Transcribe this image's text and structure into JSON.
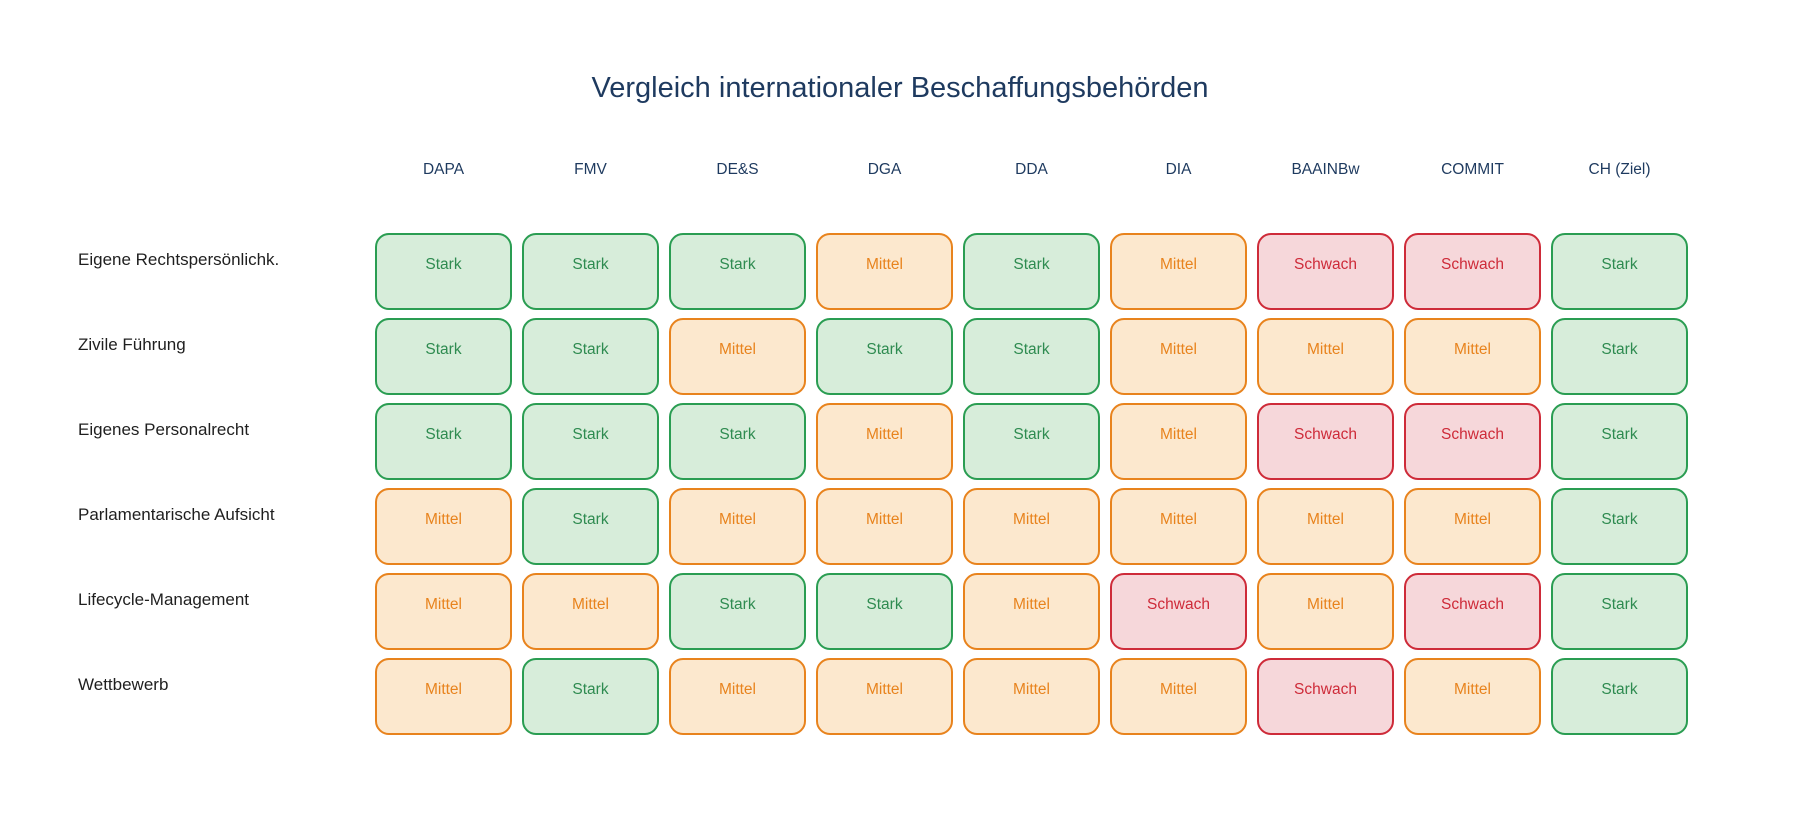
{
  "title": "Vergleich internationaler Beschaffungsbehörden",
  "colors": {
    "navy": "#1e3a5f",
    "label": "#1f1f1f",
    "stark_fill": "#d7edda",
    "stark_border": "#2a9d52",
    "stark_text": "#2e8b50",
    "mittel_fill": "#fce8ce",
    "mittel_border": "#e8831d",
    "mittel_text": "#e8831d",
    "schwach_fill": "#f6d7da",
    "schwach_border": "#ce2b39",
    "schwach_text": "#ce2b39"
  },
  "chart_data": {
    "type": "heatmap",
    "title": "Vergleich internationaler Beschaffungsbehörden",
    "columns": [
      "DAPA",
      "FMV",
      "DE&S",
      "DGA",
      "DDA",
      "DIA",
      "BAAINBw",
      "COMMIT",
      "CH (Ziel)"
    ],
    "rows": [
      "Eigene Rechtspersönlichk.",
      "Zivile Führung",
      "Eigenes Personalrecht",
      "Parlamentarische Aufsicht",
      "Lifecycle-Management",
      "Wettbewerb"
    ],
    "values": [
      [
        "Stark",
        "Stark",
        "Stark",
        "Mittel",
        "Stark",
        "Mittel",
        "Schwach",
        "Schwach",
        "Stark"
      ],
      [
        "Stark",
        "Stark",
        "Mittel",
        "Stark",
        "Stark",
        "Mittel",
        "Mittel",
        "Mittel",
        "Stark"
      ],
      [
        "Stark",
        "Stark",
        "Stark",
        "Mittel",
        "Stark",
        "Mittel",
        "Schwach",
        "Schwach",
        "Stark"
      ],
      [
        "Mittel",
        "Stark",
        "Mittel",
        "Mittel",
        "Mittel",
        "Mittel",
        "Mittel",
        "Mittel",
        "Stark"
      ],
      [
        "Mittel",
        "Mittel",
        "Stark",
        "Stark",
        "Mittel",
        "Schwach",
        "Mittel",
        "Schwach",
        "Stark"
      ],
      [
        "Mittel",
        "Stark",
        "Mittel",
        "Mittel",
        "Mittel",
        "Mittel",
        "Schwach",
        "Mittel",
        "Stark"
      ]
    ],
    "value_scale": [
      "Stark",
      "Mittel",
      "Schwach"
    ],
    "legend_position": "none",
    "grid": false
  }
}
